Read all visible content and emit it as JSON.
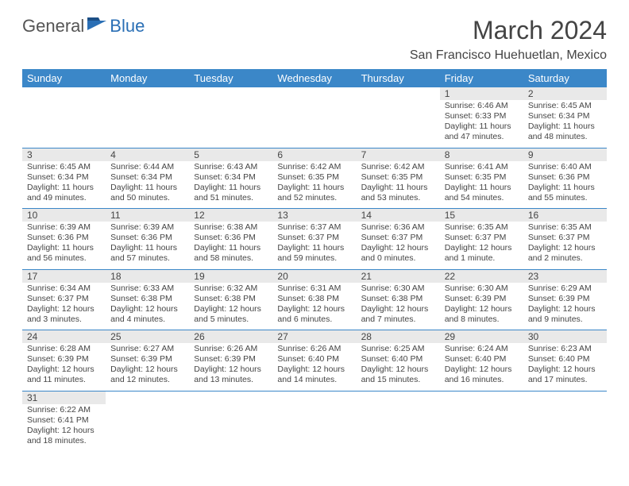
{
  "logo": {
    "general": "General",
    "blue": "Blue"
  },
  "title": "March 2024",
  "location": "San Francisco Huehuetlan, Mexico",
  "colors": {
    "header_bg": "#3b87c8",
    "header_fg": "#ffffff",
    "daynum_bg": "#e9e9e9",
    "text": "#454545",
    "border": "#3b87c8",
    "logo_blue": "#2a6fb5"
  },
  "fonts": {
    "title_size_pt": 24,
    "location_size_pt": 12,
    "header_size_pt": 10,
    "body_size_pt": 8
  },
  "dayHeaders": [
    "Sunday",
    "Monday",
    "Tuesday",
    "Wednesday",
    "Thursday",
    "Friday",
    "Saturday"
  ],
  "weeks": [
    [
      null,
      null,
      null,
      null,
      null,
      {
        "n": "1",
        "sr": "Sunrise: 6:46 AM",
        "ss": "Sunset: 6:33 PM",
        "dl1": "Daylight: 11 hours",
        "dl2": "and 47 minutes."
      },
      {
        "n": "2",
        "sr": "Sunrise: 6:45 AM",
        "ss": "Sunset: 6:34 PM",
        "dl1": "Daylight: 11 hours",
        "dl2": "and 48 minutes."
      }
    ],
    [
      {
        "n": "3",
        "sr": "Sunrise: 6:45 AM",
        "ss": "Sunset: 6:34 PM",
        "dl1": "Daylight: 11 hours",
        "dl2": "and 49 minutes."
      },
      {
        "n": "4",
        "sr": "Sunrise: 6:44 AM",
        "ss": "Sunset: 6:34 PM",
        "dl1": "Daylight: 11 hours",
        "dl2": "and 50 minutes."
      },
      {
        "n": "5",
        "sr": "Sunrise: 6:43 AM",
        "ss": "Sunset: 6:34 PM",
        "dl1": "Daylight: 11 hours",
        "dl2": "and 51 minutes."
      },
      {
        "n": "6",
        "sr": "Sunrise: 6:42 AM",
        "ss": "Sunset: 6:35 PM",
        "dl1": "Daylight: 11 hours",
        "dl2": "and 52 minutes."
      },
      {
        "n": "7",
        "sr": "Sunrise: 6:42 AM",
        "ss": "Sunset: 6:35 PM",
        "dl1": "Daylight: 11 hours",
        "dl2": "and 53 minutes."
      },
      {
        "n": "8",
        "sr": "Sunrise: 6:41 AM",
        "ss": "Sunset: 6:35 PM",
        "dl1": "Daylight: 11 hours",
        "dl2": "and 54 minutes."
      },
      {
        "n": "9",
        "sr": "Sunrise: 6:40 AM",
        "ss": "Sunset: 6:36 PM",
        "dl1": "Daylight: 11 hours",
        "dl2": "and 55 minutes."
      }
    ],
    [
      {
        "n": "10",
        "sr": "Sunrise: 6:39 AM",
        "ss": "Sunset: 6:36 PM",
        "dl1": "Daylight: 11 hours",
        "dl2": "and 56 minutes."
      },
      {
        "n": "11",
        "sr": "Sunrise: 6:39 AM",
        "ss": "Sunset: 6:36 PM",
        "dl1": "Daylight: 11 hours",
        "dl2": "and 57 minutes."
      },
      {
        "n": "12",
        "sr": "Sunrise: 6:38 AM",
        "ss": "Sunset: 6:36 PM",
        "dl1": "Daylight: 11 hours",
        "dl2": "and 58 minutes."
      },
      {
        "n": "13",
        "sr": "Sunrise: 6:37 AM",
        "ss": "Sunset: 6:37 PM",
        "dl1": "Daylight: 11 hours",
        "dl2": "and 59 minutes."
      },
      {
        "n": "14",
        "sr": "Sunrise: 6:36 AM",
        "ss": "Sunset: 6:37 PM",
        "dl1": "Daylight: 12 hours",
        "dl2": "and 0 minutes."
      },
      {
        "n": "15",
        "sr": "Sunrise: 6:35 AM",
        "ss": "Sunset: 6:37 PM",
        "dl1": "Daylight: 12 hours",
        "dl2": "and 1 minute."
      },
      {
        "n": "16",
        "sr": "Sunrise: 6:35 AM",
        "ss": "Sunset: 6:37 PM",
        "dl1": "Daylight: 12 hours",
        "dl2": "and 2 minutes."
      }
    ],
    [
      {
        "n": "17",
        "sr": "Sunrise: 6:34 AM",
        "ss": "Sunset: 6:37 PM",
        "dl1": "Daylight: 12 hours",
        "dl2": "and 3 minutes."
      },
      {
        "n": "18",
        "sr": "Sunrise: 6:33 AM",
        "ss": "Sunset: 6:38 PM",
        "dl1": "Daylight: 12 hours",
        "dl2": "and 4 minutes."
      },
      {
        "n": "19",
        "sr": "Sunrise: 6:32 AM",
        "ss": "Sunset: 6:38 PM",
        "dl1": "Daylight: 12 hours",
        "dl2": "and 5 minutes."
      },
      {
        "n": "20",
        "sr": "Sunrise: 6:31 AM",
        "ss": "Sunset: 6:38 PM",
        "dl1": "Daylight: 12 hours",
        "dl2": "and 6 minutes."
      },
      {
        "n": "21",
        "sr": "Sunrise: 6:30 AM",
        "ss": "Sunset: 6:38 PM",
        "dl1": "Daylight: 12 hours",
        "dl2": "and 7 minutes."
      },
      {
        "n": "22",
        "sr": "Sunrise: 6:30 AM",
        "ss": "Sunset: 6:39 PM",
        "dl1": "Daylight: 12 hours",
        "dl2": "and 8 minutes."
      },
      {
        "n": "23",
        "sr": "Sunrise: 6:29 AM",
        "ss": "Sunset: 6:39 PM",
        "dl1": "Daylight: 12 hours",
        "dl2": "and 9 minutes."
      }
    ],
    [
      {
        "n": "24",
        "sr": "Sunrise: 6:28 AM",
        "ss": "Sunset: 6:39 PM",
        "dl1": "Daylight: 12 hours",
        "dl2": "and 11 minutes."
      },
      {
        "n": "25",
        "sr": "Sunrise: 6:27 AM",
        "ss": "Sunset: 6:39 PM",
        "dl1": "Daylight: 12 hours",
        "dl2": "and 12 minutes."
      },
      {
        "n": "26",
        "sr": "Sunrise: 6:26 AM",
        "ss": "Sunset: 6:39 PM",
        "dl1": "Daylight: 12 hours",
        "dl2": "and 13 minutes."
      },
      {
        "n": "27",
        "sr": "Sunrise: 6:26 AM",
        "ss": "Sunset: 6:40 PM",
        "dl1": "Daylight: 12 hours",
        "dl2": "and 14 minutes."
      },
      {
        "n": "28",
        "sr": "Sunrise: 6:25 AM",
        "ss": "Sunset: 6:40 PM",
        "dl1": "Daylight: 12 hours",
        "dl2": "and 15 minutes."
      },
      {
        "n": "29",
        "sr": "Sunrise: 6:24 AM",
        "ss": "Sunset: 6:40 PM",
        "dl1": "Daylight: 12 hours",
        "dl2": "and 16 minutes."
      },
      {
        "n": "30",
        "sr": "Sunrise: 6:23 AM",
        "ss": "Sunset: 6:40 PM",
        "dl1": "Daylight: 12 hours",
        "dl2": "and 17 minutes."
      }
    ],
    [
      {
        "n": "31",
        "sr": "Sunrise: 6:22 AM",
        "ss": "Sunset: 6:41 PM",
        "dl1": "Daylight: 12 hours",
        "dl2": "and 18 minutes."
      },
      null,
      null,
      null,
      null,
      null,
      null
    ]
  ]
}
